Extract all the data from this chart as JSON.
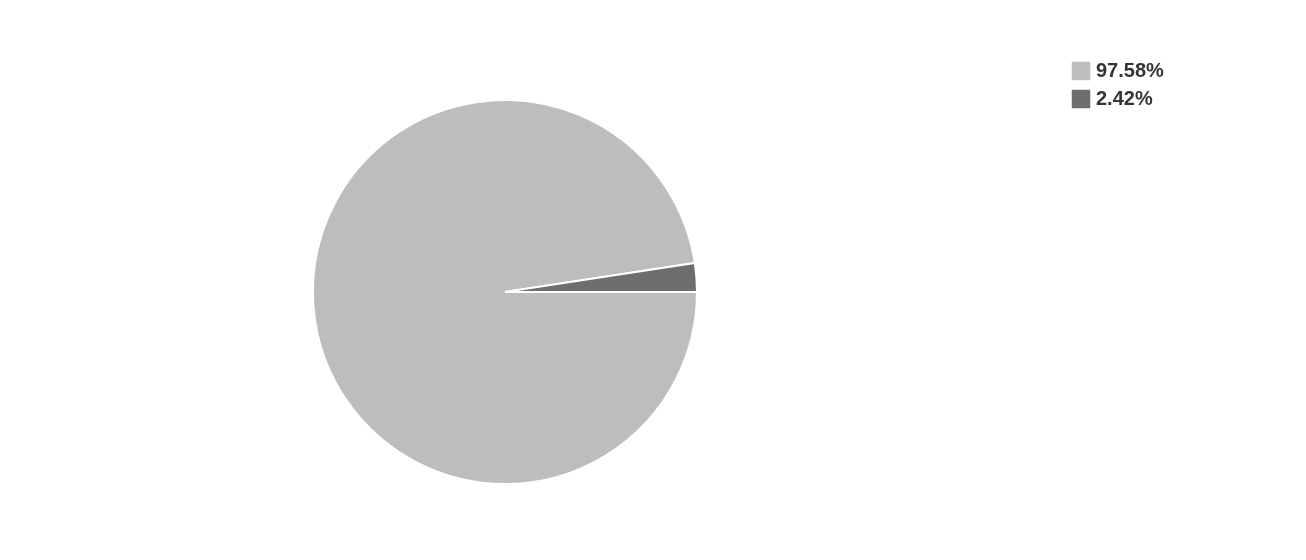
{
  "chart_data": {
    "type": "pie",
    "categories": [
      "97.58%",
      "2.42%"
    ],
    "values": [
      97.58,
      2.42
    ],
    "colors": [
      "#bdbdbd",
      "#6e6e6e"
    ],
    "legend": "top right"
  }
}
